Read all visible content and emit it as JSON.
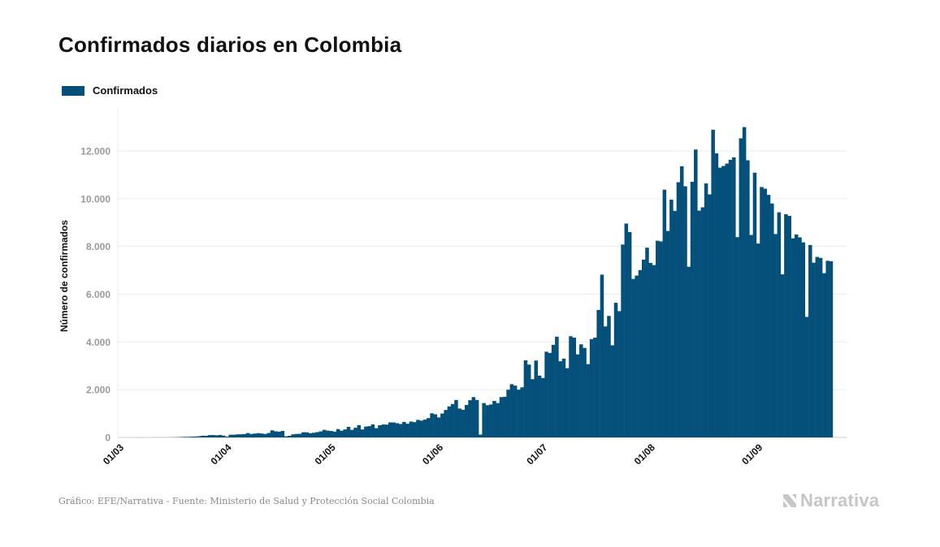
{
  "chart_data": {
    "type": "bar",
    "title": "Confirmados diarios en Colombia",
    "ylabel": "Número de confirmados",
    "legend": "Confirmados",
    "legend_position": "top-left",
    "grid": "horizontal",
    "ylim": [
      0,
      13500
    ],
    "yticks": [
      "0",
      "2.000",
      "4.000",
      "6.000",
      "8.000",
      "10.000",
      "12.000"
    ],
    "ytick_values": [
      0,
      2000,
      4000,
      6000,
      8000,
      10000,
      12000
    ],
    "xticks": [
      "01/03",
      "01/04",
      "01/05",
      "01/06",
      "01/07",
      "01/08",
      "01/09"
    ],
    "xtick_days": [
      0,
      31,
      61,
      92,
      122,
      153,
      184
    ],
    "start_day_index": 5,
    "series": [
      {
        "name": "Confirmados",
        "color": "#04507a",
        "values": [
          1,
          0,
          0,
          0,
          3,
          3,
          2,
          2,
          2,
          4,
          8,
          12,
          19,
          25,
          26,
          33,
          39,
          51,
          72,
          70,
          98,
          100,
          89,
          105,
          76,
          35,
          115,
          116,
          129,
          133,
          140,
          183,
          146,
          162,
          180,
          163,
          146,
          186,
          298,
          256,
          243,
          272,
          48,
          68,
          129,
          146,
          152,
          218,
          214,
          179,
          195,
          221,
          253,
          319,
          286,
          271,
          244,
          350,
          282,
          336,
          442,
          318,
          406,
          516,
          333,
          455,
          473,
          544,
          388,
          511,
          542,
          537,
          630,
          628,
          596,
          562,
          651,
          574,
          666,
          641,
          735,
          702,
          746,
          810,
          1010,
          969,
          838,
          1000,
          1150,
          1300,
          1399,
          1570,
          1210,
          1160,
          1360,
          1560,
          1690,
          1570,
          120,
          1440,
          1350,
          1380,
          1530,
          1440,
          1690,
          1700,
          2000,
          2230,
          2170,
          2000,
          2100,
          3230,
          3050,
          2440,
          3220,
          2590,
          2490,
          3590,
          3540,
          3880,
          4220,
          3190,
          3300,
          2900,
          4240,
          4180,
          3480,
          3900,
          3750,
          3070,
          4120,
          4180,
          5340,
          6820,
          4650,
          5090,
          3860,
          5640,
          5290,
          8080,
          8960,
          8600,
          6640,
          6780,
          7010,
          7450,
          7950,
          7310,
          7220,
          8240,
          8210,
          10380,
          8650,
          9960,
          9490,
          10690,
          11360,
          10520,
          7150,
          10710,
          12060,
          9500,
          9640,
          10640,
          10180,
          12890,
          11900,
          11300,
          11370,
          11470,
          11630,
          11730,
          8390,
          12530,
          13000,
          11610,
          8480,
          11090,
          8120,
          10490,
          10420,
          10160,
          9800,
          8520,
          9430,
          6830,
          9350,
          9280,
          8340,
          8500,
          8380,
          8170,
          5050,
          8060,
          7320,
          7560,
          7520,
          6880,
          7400,
          7380
        ]
      }
    ]
  },
  "footer": {
    "source": "Gráfico: EFE/Narrativa - Fuente: Ministerio de Salud y Protección Social Colombia",
    "brand": "Narrativa"
  }
}
